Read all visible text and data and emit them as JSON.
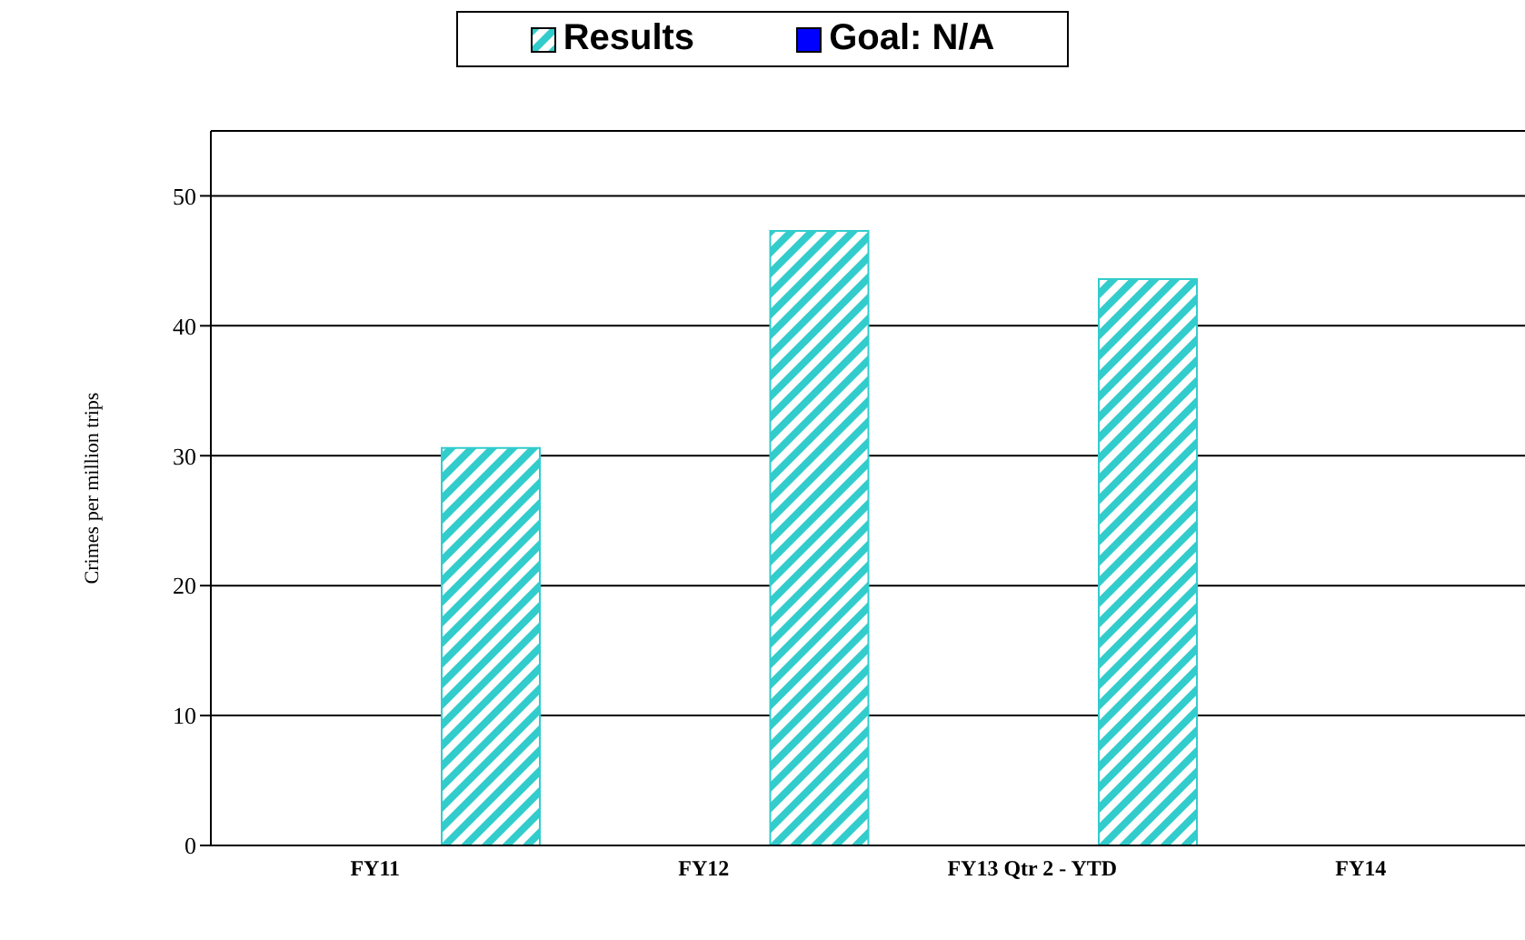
{
  "chart_data": {
    "type": "bar",
    "ylabel": "Crimes per million trips",
    "categories": [
      "FY11",
      "FY12",
      "FY13 Qtr 2 - YTD",
      "FY14"
    ],
    "series": [
      {
        "name": "Results",
        "color": "#33cccc",
        "values": [
          30.6,
          47.3,
          43.6,
          null
        ]
      },
      {
        "name": "Goal: N/A",
        "color": "#0000ff",
        "values": [
          null,
          null,
          null,
          null
        ]
      }
    ],
    "ylim": [
      0,
      55
    ],
    "yticks": [
      0,
      10,
      20,
      30,
      40,
      50
    ],
    "grid": "y",
    "legend": "top"
  }
}
